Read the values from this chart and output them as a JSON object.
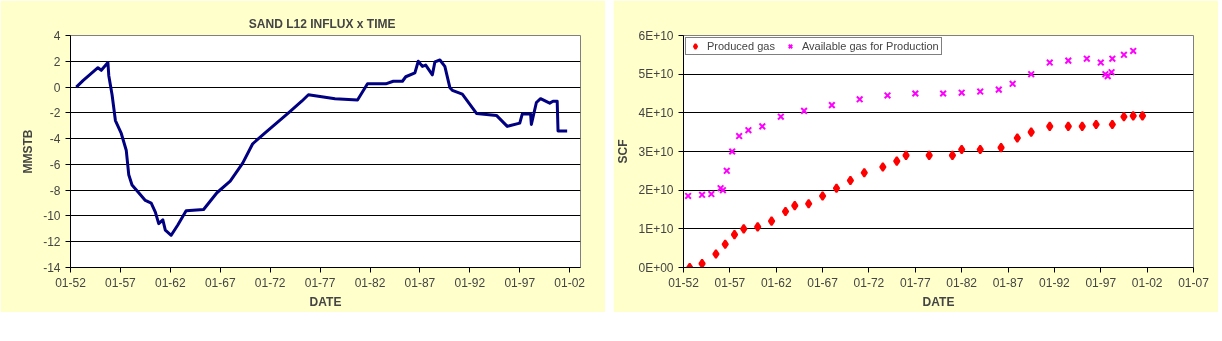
{
  "chart_data": [
    {
      "type": "line",
      "title": "SAND  L12  INFLUX x TIME",
      "xlabel": "DATE",
      "ylabel": "MMSTB",
      "grid": "y",
      "legend": false,
      "xlim": [
        "1952-01",
        "2003-02"
      ],
      "ylim": [
        -14,
        4
      ],
      "yticks": [
        -14,
        -12,
        -10,
        -8,
        -6,
        -4,
        -2,
        0,
        2,
        4
      ],
      "xticks": [
        {
          "value": "1952-01",
          "label": "01-52"
        },
        {
          "value": "1957-01",
          "label": "01-57"
        },
        {
          "value": "1962-01",
          "label": "01-62"
        },
        {
          "value": "1967-01",
          "label": "01-67"
        },
        {
          "value": "1972-01",
          "label": "01-72"
        },
        {
          "value": "1977-01",
          "label": "01-77"
        },
        {
          "value": "1982-01",
          "label": "01-82"
        },
        {
          "value": "1987-01",
          "label": "01-87"
        },
        {
          "value": "1992-01",
          "label": "01-92"
        },
        {
          "value": "1997-01",
          "label": "01-97"
        },
        {
          "value": "2002-01",
          "label": "01-02"
        }
      ],
      "series": [
        {
          "color": "#000080",
          "line_style": "solid",
          "x": [
            "1952-08",
            "1953-04",
            "1954-10",
            "1955-02",
            "1955-10",
            "1955-11",
            "1956-03",
            "1956-07",
            "1957-02",
            "1957-08",
            "1957-11",
            "1958-03",
            "1958-11",
            "1959-07",
            "1960-02",
            "1960-07",
            "1960-11",
            "1961-04",
            "1961-07",
            "1962-02",
            "1962-10",
            "1963-08",
            "1965-05",
            "1966-09",
            "1968-01",
            "1969-04",
            "1970-04",
            "1971-08",
            "1973-11",
            "1975-03",
            "1975-11",
            "1977-03",
            "1978-07",
            "1980-10",
            "1981-10",
            "1983-08",
            "1984-05",
            "1985-04",
            "1985-08",
            "1986-07",
            "1986-11",
            "1987-04",
            "1987-08",
            "1988-04",
            "1988-07",
            "1989-01",
            "1989-07",
            "1990-01",
            "1990-04",
            "1991-04",
            "1992-09",
            "1994-09",
            "1995-10",
            "1997-01",
            "1997-04",
            "1998-02",
            "1998-03",
            "1998-09",
            "1999-02",
            "2000-01",
            "2000-05",
            "2000-10",
            "2000-11",
            "2001-10"
          ],
          "values": [
            0,
            0.5,
            1.5,
            1.3,
            1.9,
            0.9,
            -0.6,
            -2.6,
            -3.6,
            -4.9,
            -6.8,
            -7.6,
            -8.2,
            -8.8,
            -9.0,
            -9.7,
            -10.6,
            -10.3,
            -11.1,
            -11.5,
            -10.7,
            -9.6,
            -9.5,
            -8.2,
            -7.3,
            -5.9,
            -4.4,
            -3.5,
            -2.0,
            -1.1,
            -0.6,
            -0.75,
            -0.9,
            -1.0,
            0.25,
            0.25,
            0.45,
            0.45,
            0.8,
            1.1,
            2.0,
            1.6,
            1.7,
            0.95,
            1.95,
            2.1,
            1.6,
            -0.05,
            -0.25,
            -0.55,
            -2.05,
            -2.2,
            -3.05,
            -2.8,
            -2.1,
            -2.1,
            -2.9,
            -1.2,
            -0.9,
            -1.25,
            -1.1,
            -1.1,
            -3.4,
            -3.4
          ]
        }
      ]
    },
    {
      "type": "scatter",
      "xlabel": "DATE",
      "ylabel": "SCF",
      "grid": "y",
      "legend": "top left",
      "xlim": [
        "1952-01",
        "2007-01"
      ],
      "ylim": [
        0,
        60000000000
      ],
      "yticks": [
        {
          "value": 0,
          "label": "0E+00"
        },
        {
          "value": 10000000000,
          "label": "1E+10"
        },
        {
          "value": 20000000000,
          "label": "2E+10"
        },
        {
          "value": 30000000000,
          "label": "3E+10"
        },
        {
          "value": 40000000000,
          "label": "4E+10"
        },
        {
          "value": 50000000000,
          "label": "5E+10"
        },
        {
          "value": 60000000000,
          "label": "6E+10"
        }
      ],
      "xticks": [
        {
          "value": "1952-01",
          "label": "01-52"
        },
        {
          "value": "1957-01",
          "label": "01-57"
        },
        {
          "value": "1962-01",
          "label": "01-62"
        },
        {
          "value": "1967-01",
          "label": "01-67"
        },
        {
          "value": "1972-01",
          "label": "01-72"
        },
        {
          "value": "1977-01",
          "label": "01-77"
        },
        {
          "value": "1982-01",
          "label": "01-82"
        },
        {
          "value": "1987-01",
          "label": "01-87"
        },
        {
          "value": "1992-01",
          "label": "01-92"
        },
        {
          "value": "1997-01",
          "label": "01-97"
        },
        {
          "value": "2002-01",
          "label": "01-02"
        },
        {
          "value": "2007-01",
          "label": "01-07"
        }
      ],
      "series": [
        {
          "name": "Produced gas",
          "color": "#ff0000",
          "marker": "diamond",
          "x": [
            "1952-09",
            "1954-01",
            "1955-07",
            "1956-07",
            "1957-07",
            "1958-07",
            "1960-01",
            "1961-07",
            "1963-01",
            "1964-01",
            "1965-07",
            "1967-01",
            "1968-07",
            "1970-01",
            "1971-07",
            "1973-07",
            "1975-01",
            "1976-01",
            "1978-07",
            "1981-01",
            "1982-01",
            "1984-01",
            "1986-04",
            "1988-01",
            "1989-07",
            "1991-07",
            "1993-07",
            "1995-01",
            "1996-07",
            "1998-04",
            "1999-07",
            "2000-07",
            "2001-07"
          ],
          "values": [
            0,
            1000000000,
            3500000000,
            6000000000,
            8500000000,
            10000000000,
            10500000000,
            12000000000,
            14500000000,
            16000000000,
            16500000000,
            18500000000,
            20500000000,
            22500000000,
            24500000000,
            26000000000,
            27500000000,
            29000000000,
            29000000000,
            29000000000,
            30500000000,
            30500000000,
            31000000000,
            33500000000,
            35000000000,
            36500000000,
            36500000000,
            36500000000,
            37000000000,
            37000000000,
            39000000000,
            39200000000,
            39200000000
          ]
        },
        {
          "name": "Available gas for Production",
          "color": "#ff00ff",
          "marker": "cross",
          "x": [
            "1952-07",
            "1954-01",
            "1955-01",
            "1956-01",
            "1956-04",
            "1956-09",
            "1957-04",
            "1958-01",
            "1959-01",
            "1960-07",
            "1962-07",
            "1965-01",
            "1968-01",
            "1971-01",
            "1974-01",
            "1977-01",
            "1980-01",
            "1982-01",
            "1984-01",
            "1986-01",
            "1987-07",
            "1989-07",
            "1991-07",
            "1993-07",
            "1995-07",
            "1997-01",
            "1997-07",
            "1997-10",
            "1998-03",
            "1998-04",
            "1999-07",
            "2000-07"
          ],
          "values": [
            18500000000,
            18800000000,
            19000000000,
            20500000000,
            20000000000,
            25000000000,
            30000000000,
            34000000000,
            35500000000,
            36500000000,
            39000000000,
            40500000000,
            42000000000,
            43500000000,
            44500000000,
            45000000000,
            45000000000,
            45200000000,
            45500000000,
            46000000000,
            47500000000,
            50000000000,
            53000000000,
            53500000000,
            54000000000,
            53000000000,
            50000000000,
            49500000000,
            50500000000,
            54000000000,
            55000000000,
            56000000000
          ]
        }
      ]
    }
  ]
}
